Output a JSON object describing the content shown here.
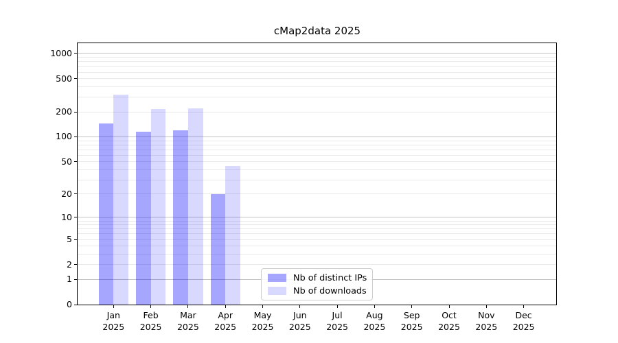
{
  "title": "cMap2data 2025",
  "chart_data": {
    "type": "bar",
    "title": "cMap2data 2025",
    "categories": [
      "Jan 2025",
      "Feb 2025",
      "Mar 2025",
      "Apr 2025",
      "May 2025",
      "Jun 2025",
      "Jul 2025",
      "Aug 2025",
      "Sep 2025",
      "Oct 2025",
      "Nov 2025",
      "Dec 2025"
    ],
    "x_tick_months": [
      "Jan",
      "Feb",
      "Mar",
      "Apr",
      "May",
      "Jun",
      "Jul",
      "Aug",
      "Sep",
      "Oct",
      "Nov",
      "Dec"
    ],
    "x_tick_year": "2025",
    "series": [
      {
        "name": "Nb of distinct IPs",
        "color": "rgba(0,0,255,0.35)",
        "values": [
          145,
          115,
          120,
          20,
          null,
          null,
          null,
          null,
          null,
          null,
          null,
          null
        ]
      },
      {
        "name": "Nb of downloads",
        "color": "rgba(0,0,255,0.15)",
        "values": [
          320,
          215,
          220,
          44,
          null,
          null,
          null,
          null,
          null,
          null,
          null,
          null
        ]
      }
    ],
    "y_axis": {
      "scale": "log1p",
      "ticks": [
        0,
        1,
        2,
        5,
        10,
        20,
        50,
        100,
        200,
        500,
        1000
      ],
      "major_grid_values": [
        1,
        10,
        100,
        1000
      ],
      "max": 1327
    },
    "grid": "both",
    "legend_position": "lower center",
    "xlabel": "",
    "ylabel": ""
  },
  "colors": {
    "bar_distinct_ips": "rgba(0,0,255,0.35)",
    "bar_downloads": "rgba(0,0,255,0.15)",
    "grid_minor": "#e9e9e9",
    "grid_major": "#c2c2c2",
    "axis_spine": "#000000",
    "legend_border": "#cccccc",
    "background": "#ffffff"
  }
}
